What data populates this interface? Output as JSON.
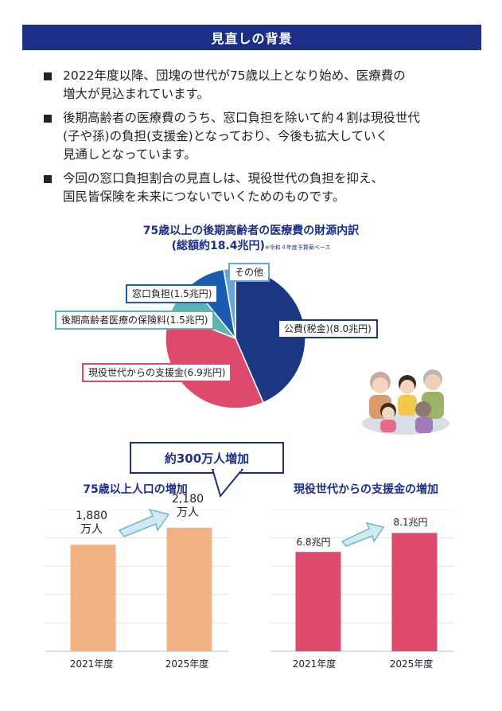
{
  "header": {
    "title": "見直しの背景"
  },
  "bullets": [
    {
      "line1": "2022年度以降、団塊の世代が75歳以上となり始め、医療費の",
      "line2": "増大が見込まれています。",
      "line3": ""
    },
    {
      "line1": "後期高齢者の医療費のうち、窓口負担を除いて約４割は現役世代",
      "line2": "(子や孫)の負担(支援金)となっており、今後も拡大していく",
      "line3": "見通しとなっています。"
    },
    {
      "line1": "今回の窓口負担割合の見直しは、現役世代の負担を抑え、",
      "line2": "国民皆保険を未来につないでいくためのものです。",
      "line3": ""
    }
  ],
  "pie": {
    "title_line1": "75歳以上の後期高齢者の医療費の財源内訳",
    "title_line2": "(総額約18.4兆円)",
    "note": "※令和４年度予算案ベース",
    "colors": {
      "public": "#1b3784",
      "support": "#dd4a6b",
      "insurance": "#5bb5b0",
      "copay": "#1a5db0",
      "other": "#6aa6d9"
    }
  },
  "callout": {
    "text": "約300万人増加"
  },
  "chart_data": [
    {
      "type": "pie",
      "title": "75歳以上の後期高齢者の医療費の財源内訳",
      "labels": [
        "公費(税金)(8.0兆円)",
        "現役世代からの支援金(6.9兆円)",
        "後期高齢者医療の保険料(1.5兆円)",
        "窓口負担(1.5兆円)",
        "その他"
      ],
      "values": [
        8.0,
        6.9,
        1.5,
        1.5,
        0.5
      ]
    },
    {
      "type": "bar",
      "title": "75歳以上人口の増加",
      "categories": [
        "2021年度",
        "2025年度"
      ],
      "values": [
        1880,
        2180
      ],
      "value_labels": [
        {
          "num": "1,880",
          "unit": "万人"
        },
        {
          "num": "2,180",
          "unit": "万人"
        }
      ],
      "ylim": [
        0,
        2500
      ],
      "color": "#f3b283",
      "grid": true
    },
    {
      "type": "bar",
      "title": "現役世代からの支援金の増加",
      "categories": [
        "2021年度",
        "2025年度"
      ],
      "values": [
        6.8,
        8.1
      ],
      "value_labels": [
        "6.8兆円",
        "8.1兆円"
      ],
      "ylim": [
        0,
        9.7
      ],
      "color": "#dd4a6b",
      "grid": true
    }
  ]
}
